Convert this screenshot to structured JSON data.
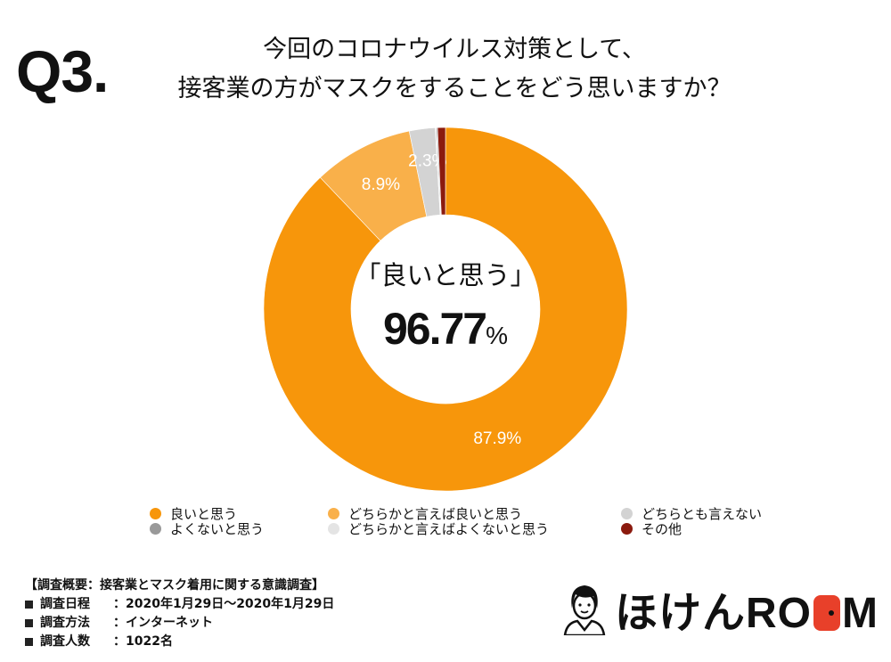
{
  "question_number": "Q3.",
  "title_lines": [
    "今回のコロナウイルス対策として、",
    "接客業の方がマスクをすることをどう思いますか？"
  ],
  "center": {
    "label": "「良いと思う」",
    "value": "96.77",
    "unit": "%"
  },
  "chart_data": {
    "type": "pie",
    "donut": true,
    "title": "今回のコロナウイルス対策として、接客業の方がマスクをすることをどう思いますか？",
    "categories": [
      "良いと思う",
      "どちらかと言えば良いと思う",
      "どちらとも言えない",
      "どちらかと言えばよくないと思う",
      "よくないと思う",
      "その他"
    ],
    "values": [
      87.9,
      8.9,
      2.3,
      0.1,
      0.1,
      0.7
    ],
    "data_labels": [
      "87.9%",
      "8.9%",
      "2.3%",
      "",
      "",
      ""
    ],
    "colors": [
      "#f7960b",
      "#f9b04a",
      "#d3d3d3",
      "#e4e4e4",
      "#999999",
      "#8b1a0e"
    ],
    "legend_position": "bottom"
  },
  "legend": [
    {
      "label": "良いと思う",
      "color": "#f7960b"
    },
    {
      "label": "どちらかと言えば良いと思う",
      "color": "#f9b04a"
    },
    {
      "label": "どちらとも言えない",
      "color": "#d3d3d3"
    },
    {
      "label": "よくないと思う",
      "color": "#999999"
    },
    {
      "label": "どちらかと言えばよくないと思う",
      "color": "#e4e4e4"
    },
    {
      "label": "その他",
      "color": "#8b1a0e"
    }
  ],
  "footer": {
    "heading": "【調査概要：接客業とマスク着用に関する意識調査】",
    "rows": [
      {
        "label": "調査日程",
        "value": "：2020年1月29日〜2020年1月29日"
      },
      {
        "label": "調査方法",
        "value": "：インターネット"
      },
      {
        "label": "調査人数",
        "value": "：1022名"
      }
    ]
  },
  "logo": {
    "text": "ほけんROOM"
  }
}
